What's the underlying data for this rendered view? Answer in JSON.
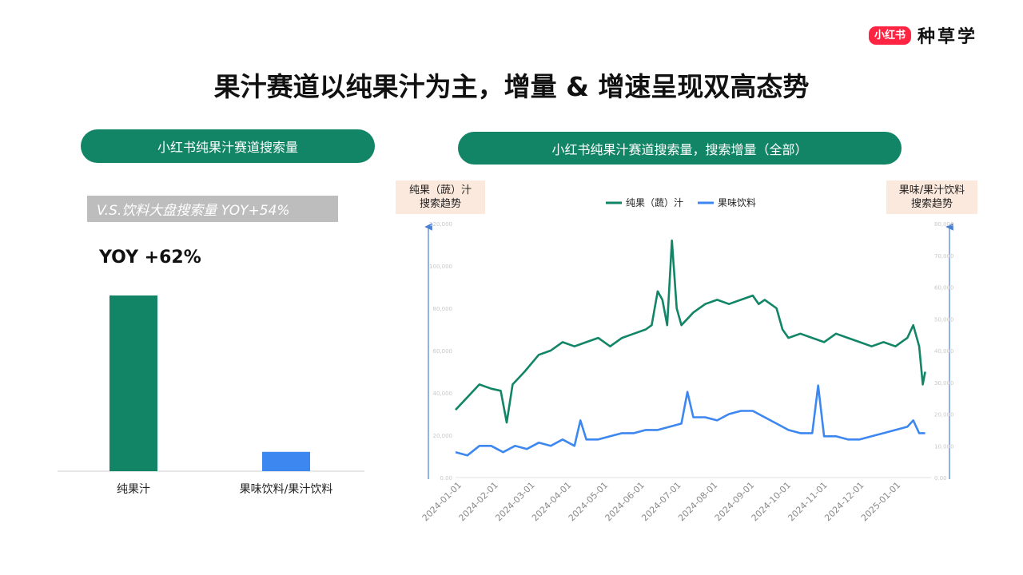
{
  "logo": {
    "badge": "小红书",
    "text": "种草学"
  },
  "title": "果汁赛道以纯果汁为主，增量 & 增速呈现双高态势",
  "left_panel": {
    "header": "小红书纯果汁赛道搜索量",
    "banner": "V.S.饮料大盘搜索量 YOY+54%",
    "yoy": "YOY +62%"
  },
  "right_panel": {
    "header": "小红书纯果汁赛道搜索量，搜索增量（全部）",
    "left_axis_label": [
      "纯果（蔬）汁",
      "搜索趋势"
    ],
    "right_axis_label": [
      "果味/果汁饮料",
      "搜索趋势"
    ]
  },
  "colors": {
    "green": "#118566",
    "blue": "#3d87f0",
    "pill": "#118566",
    "axis": "#4a7fd4"
  },
  "chart_data": [
    {
      "type": "bar",
      "title": "小红书纯果汁赛道搜索量",
      "categories": [
        "纯果汁",
        "果味饮料/果汁饮料"
      ],
      "values": [
        100,
        11
      ],
      "ylim": [
        0,
        100
      ],
      "annotation": "YOY +62%"
    },
    {
      "type": "line",
      "title": "小红书纯果汁赛道搜索量，搜索增量（全部）",
      "legend": [
        "纯果（蔬）汁",
        "果味饮料"
      ],
      "x_ticks": [
        "2024-01-01",
        "2024-02-01",
        "2024-03-01",
        "2024-04-01",
        "2024-05-01",
        "2024-06-01",
        "2024-07-01",
        "2024-08-01",
        "2024-09-01",
        "2024-10-01",
        "2024-11-01",
        "2024-12-01",
        "2025-01-01"
      ],
      "x_range_days": [
        0,
        400
      ],
      "ylim_left": [
        0,
        120000
      ],
      "ylim_right": [
        0,
        80000
      ],
      "left_tick_labels": [
        "0.00",
        "20,000",
        "40,000",
        "60,000",
        "80,000",
        "100,000",
        "120,000"
      ],
      "right_tick_labels": [
        "0.00",
        "10,000",
        "20,000",
        "30,000",
        "40,000",
        "50,000",
        "60,000",
        "70,000",
        "80,000"
      ],
      "series": [
        {
          "name": "纯果（蔬）汁",
          "axis": "left",
          "points": [
            [
              0,
              32000
            ],
            [
              10,
              38000
            ],
            [
              20,
              44000
            ],
            [
              30,
              42000
            ],
            [
              38,
              41000
            ],
            [
              43,
              26000
            ],
            [
              48,
              44000
            ],
            [
              58,
              50000
            ],
            [
              70,
              58000
            ],
            [
              80,
              60000
            ],
            [
              90,
              64000
            ],
            [
              100,
              62000
            ],
            [
              110,
              64000
            ],
            [
              120,
              66000
            ],
            [
              130,
              62000
            ],
            [
              140,
              66000
            ],
            [
              150,
              68000
            ],
            [
              160,
              70000
            ],
            [
              165,
              72000
            ],
            [
              170,
              88000
            ],
            [
              174,
              84000
            ],
            [
              178,
              72000
            ],
            [
              182,
              112000
            ],
            [
              186,
              80000
            ],
            [
              190,
              72000
            ],
            [
              200,
              78000
            ],
            [
              210,
              82000
            ],
            [
              220,
              84000
            ],
            [
              230,
              82000
            ],
            [
              240,
              84000
            ],
            [
              250,
              86000
            ],
            [
              255,
              82000
            ],
            [
              260,
              84000
            ],
            [
              270,
              80000
            ],
            [
              275,
              70000
            ],
            [
              280,
              66000
            ],
            [
              290,
              68000
            ],
            [
              300,
              66000
            ],
            [
              310,
              64000
            ],
            [
              320,
              68000
            ],
            [
              330,
              66000
            ],
            [
              340,
              64000
            ],
            [
              350,
              62000
            ],
            [
              360,
              64000
            ],
            [
              370,
              62000
            ],
            [
              380,
              66000
            ],
            [
              385,
              72000
            ],
            [
              390,
              62000
            ],
            [
              393,
              44000
            ],
            [
              395,
              50000
            ]
          ]
        },
        {
          "name": "果味饮料",
          "axis": "right",
          "points": [
            [
              0,
              8000
            ],
            [
              10,
              7000
            ],
            [
              20,
              10000
            ],
            [
              30,
              10000
            ],
            [
              40,
              8000
            ],
            [
              50,
              10000
            ],
            [
              60,
              9000
            ],
            [
              70,
              11000
            ],
            [
              80,
              10000
            ],
            [
              90,
              12000
            ],
            [
              100,
              10000
            ],
            [
              105,
              18000
            ],
            [
              110,
              12000
            ],
            [
              120,
              12000
            ],
            [
              130,
              13000
            ],
            [
              140,
              14000
            ],
            [
              150,
              14000
            ],
            [
              160,
              15000
            ],
            [
              170,
              15000
            ],
            [
              180,
              16000
            ],
            [
              190,
              17000
            ],
            [
              195,
              27000
            ],
            [
              200,
              19000
            ],
            [
              210,
              19000
            ],
            [
              220,
              18000
            ],
            [
              230,
              20000
            ],
            [
              240,
              21000
            ],
            [
              250,
              21000
            ],
            [
              260,
              19000
            ],
            [
              270,
              17000
            ],
            [
              280,
              15000
            ],
            [
              290,
              14000
            ],
            [
              300,
              14000
            ],
            [
              305,
              29000
            ],
            [
              310,
              13000
            ],
            [
              320,
              13000
            ],
            [
              330,
              12000
            ],
            [
              340,
              12000
            ],
            [
              350,
              13000
            ],
            [
              360,
              14000
            ],
            [
              370,
              15000
            ],
            [
              380,
              16000
            ],
            [
              385,
              18000
            ],
            [
              390,
              14000
            ],
            [
              395,
              14000
            ]
          ]
        }
      ]
    }
  ]
}
